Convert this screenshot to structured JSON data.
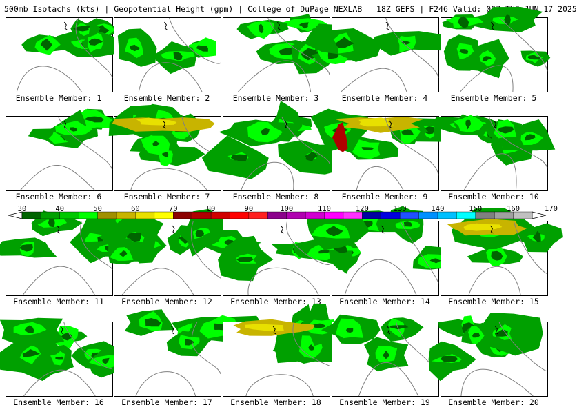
{
  "header": {
    "title": "500mb Isotachs (kts) | Geopotential Height (gpm) | College of DuPage NEXLAB   18Z GEFS | F246 Valid: 00Z TUE JUN 17 2025"
  },
  "colorbar": {
    "labels": [
      "30",
      "40",
      "50",
      "60",
      "70",
      "80",
      "90",
      "100",
      "110",
      "120",
      "130",
      "140",
      "150",
      "160",
      "170"
    ],
    "colors": [
      "#006400",
      "#00a000",
      "#00c800",
      "#00ff00",
      "#a09000",
      "#c8b400",
      "#e8e000",
      "#ffff00",
      "#8b0000",
      "#b00000",
      "#d00000",
      "#ff0000",
      "#ff2020",
      "#8b008b",
      "#b000b0",
      "#d000d0",
      "#ff00ff",
      "#ff30ff",
      "#0000a0",
      "#0000e0",
      "#2050ff",
      "#0090ff",
      "#00c0ff",
      "#00ffff",
      "#808080",
      "#a0a0a0",
      "#c0c0c0"
    ]
  },
  "members": [
    {
      "label": "Ensemble Member: 1"
    },
    {
      "label": "Ensemble Member: 2"
    },
    {
      "label": "Ensemble Member: 3"
    },
    {
      "label": "Ensemble Member: 4"
    },
    {
      "label": "Ensemble Member: 5"
    },
    {
      "label": "Ensemble Member: 6"
    },
    {
      "label": "Ensemble Member: 7"
    },
    {
      "label": "Ensemble Member: 8"
    },
    {
      "label": "Ensemble Member: 9"
    },
    {
      "label": "Ensemble Member: 10"
    },
    {
      "label": "Ensemble Member: 11"
    },
    {
      "label": "Ensemble Member: 12"
    },
    {
      "label": "Ensemble Member: 13"
    },
    {
      "label": "Ensemble Member: 14"
    },
    {
      "label": "Ensemble Member: 15"
    },
    {
      "label": "Ensemble Member: 16"
    },
    {
      "label": "Ensemble Member: 17"
    },
    {
      "label": "Ensemble Member: 18"
    },
    {
      "label": "Ensemble Member: 19"
    },
    {
      "label": "Ensemble Member: 20"
    }
  ]
}
